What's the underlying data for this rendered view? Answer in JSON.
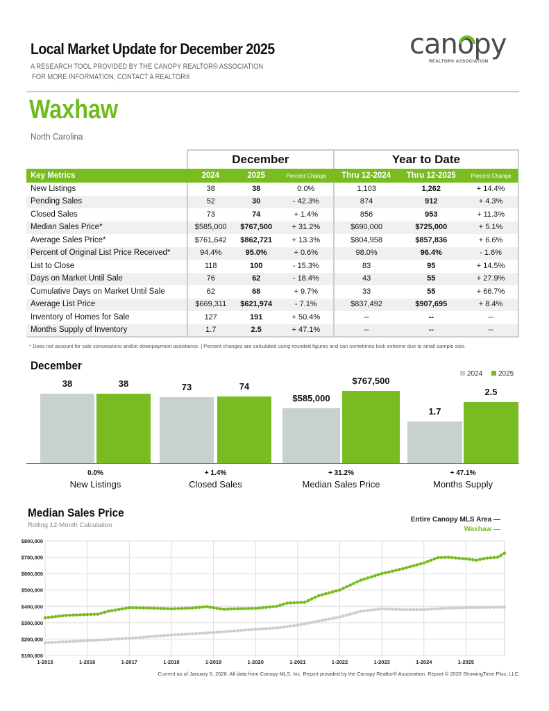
{
  "header": {
    "title": "Local Market Update for December 2025",
    "subtitle1": "A RESEARCH TOOL PROVIDED BY THE CANOPY REALTOR® ASSOCIATION",
    "subtitle2": "FOR MORE INFORMATION, CONTACT A REALTOR®",
    "logo_word": "canopy",
    "logo_tag": "REALTOR® ASSOCIATION",
    "city": "Waxhaw",
    "state": "North Carolina"
  },
  "colors": {
    "green": "#78bc22",
    "gray": "#c9d1cf"
  },
  "table": {
    "group_headers": [
      "December",
      "Year to Date"
    ],
    "columns": [
      "Key Metrics",
      "2024",
      "2025",
      "Percent Change",
      "Thru 12-2024",
      "Thru 12-2025",
      "Percent Change"
    ],
    "rows": [
      [
        "New Listings",
        "38",
        "38",
        "0.0%",
        "1,103",
        "1,262",
        "+ 14.4%"
      ],
      [
        "Pending Sales",
        "52",
        "30",
        "- 42.3%",
        "874",
        "912",
        "+ 4.3%"
      ],
      [
        "Closed Sales",
        "73",
        "74",
        "+ 1.4%",
        "856",
        "953",
        "+ 11.3%"
      ],
      [
        "Median Sales Price*",
        "$585,000",
        "$767,500",
        "+ 31.2%",
        "$690,000",
        "$725,000",
        "+ 5.1%"
      ],
      [
        "Average Sales Price*",
        "$761,642",
        "$862,721",
        "+ 13.3%",
        "$804,958",
        "$857,836",
        "+ 6.6%"
      ],
      [
        "Percent of Original List Price Received*",
        "94.4%",
        "95.0%",
        "+ 0.6%",
        "98.0%",
        "96.4%",
        "- 1.6%"
      ],
      [
        "List to Close",
        "118",
        "100",
        "- 15.3%",
        "83",
        "95",
        "+ 14.5%"
      ],
      [
        "Days on Market Until Sale",
        "76",
        "62",
        "- 18.4%",
        "43",
        "55",
        "+ 27.9%"
      ],
      [
        "Cumulative Days on Market Until Sale",
        "62",
        "68",
        "+ 9.7%",
        "33",
        "55",
        "+ 66.7%"
      ],
      [
        "Average List Price",
        "$669,311",
        "$621,974",
        "- 7.1%",
        "$837,492",
        "$907,695",
        "+ 8.4%"
      ],
      [
        "Inventory of Homes for Sale",
        "127",
        "191",
        "+ 50.4%",
        "--",
        "--",
        "--"
      ],
      [
        "Months Supply of Inventory",
        "1.7",
        "2.5",
        "+ 47.1%",
        "--",
        "--",
        "--"
      ]
    ],
    "footnote": "* Does not account for sale concessions and/or downpayment assistance.  |  Percent changes are calculated using rounded figures and can sometimes look extreme due to small sample size."
  },
  "chart_data": [
    {
      "type": "bar",
      "title": "December",
      "legend": [
        "2024",
        "2025"
      ],
      "categories": [
        "New Listings",
        "Closed Sales",
        "Median Sales Price",
        "Months Supply"
      ],
      "series": [
        {
          "name": "2024",
          "values": [
            38,
            73,
            585000,
            1.7
          ],
          "labels": [
            "38",
            "73",
            "$585,000",
            "1.7"
          ]
        },
        {
          "name": "2025",
          "values": [
            38,
            74,
            767500,
            2.5
          ],
          "labels": [
            "38",
            "74",
            "$767,500",
            "2.5"
          ]
        }
      ],
      "changes": [
        "0.0%",
        "+ 1.4%",
        "+ 31.2%",
        "+ 47.1%"
      ]
    },
    {
      "type": "line",
      "title": "Median Sales Price",
      "subtitle": "Rolling 12-Month Calculation",
      "y_ticks": [
        "$100,000",
        "$200,000",
        "$300,000",
        "$400,000",
        "$500,000",
        "$600,000",
        "$700,000",
        "$800,000"
      ],
      "ylim": [
        100000,
        800000
      ],
      "x_ticks": [
        "1-2015",
        "1-2016",
        "1-2017",
        "1-2018",
        "1-2019",
        "1-2020",
        "1-2021",
        "1-2022",
        "1-2023",
        "1-2024",
        "1-2025"
      ],
      "xlim": [
        "2015-01",
        "2025-12"
      ],
      "grid": true,
      "legend": "top-right",
      "series": [
        {
          "name": "Entire Canopy MLS Area",
          "color": "#c9d1cf",
          "points": [
            [
              "2015-01",
              178000
            ],
            [
              "2016-01",
              190000
            ],
            [
              "2017-01",
              205000
            ],
            [
              "2018-01",
              225000
            ],
            [
              "2019-01",
              240000
            ],
            [
              "2020-01",
              260000
            ],
            [
              "2020-07",
              268000
            ],
            [
              "2021-01",
              285000
            ],
            [
              "2021-07",
              310000
            ],
            [
              "2022-01",
              335000
            ],
            [
              "2022-07",
              370000
            ],
            [
              "2023-01",
              385000
            ],
            [
              "2023-07",
              380000
            ],
            [
              "2024-01",
              380000
            ],
            [
              "2024-07",
              388000
            ],
            [
              "2025-01",
              392000
            ],
            [
              "2025-12",
              395000
            ]
          ]
        },
        {
          "name": "Waxhaw",
          "color": "#78bc22",
          "points": [
            [
              "2015-01",
              330000
            ],
            [
              "2015-07",
              345000
            ],
            [
              "2016-01",
              350000
            ],
            [
              "2016-04",
              352000
            ],
            [
              "2016-07",
              370000
            ],
            [
              "2017-01",
              392000
            ],
            [
              "2017-07",
              390000
            ],
            [
              "2018-01",
              385000
            ],
            [
              "2018-07",
              390000
            ],
            [
              "2018-11",
              398000
            ],
            [
              "2019-04",
              382000
            ],
            [
              "2019-07",
              385000
            ],
            [
              "2020-01",
              388000
            ],
            [
              "2020-07",
              400000
            ],
            [
              "2020-10",
              420000
            ],
            [
              "2021-03",
              425000
            ],
            [
              "2021-07",
              465000
            ],
            [
              "2022-01",
              500000
            ],
            [
              "2022-07",
              560000
            ],
            [
              "2023-01",
              600000
            ],
            [
              "2023-07",
              630000
            ],
            [
              "2024-01",
              665000
            ],
            [
              "2024-05",
              698000
            ],
            [
              "2024-08",
              700000
            ],
            [
              "2025-01",
              690000
            ],
            [
              "2025-04",
              682000
            ],
            [
              "2025-07",
              695000
            ],
            [
              "2025-10",
              700000
            ],
            [
              "2025-12",
              725000
            ]
          ]
        }
      ]
    }
  ],
  "footer": "Current as of January 5, 2026. All data from Canopy MLS, Inc. Report provided by the Canopy Realtor® Association. Report © 2026 ShowingTime Plus, LLC."
}
